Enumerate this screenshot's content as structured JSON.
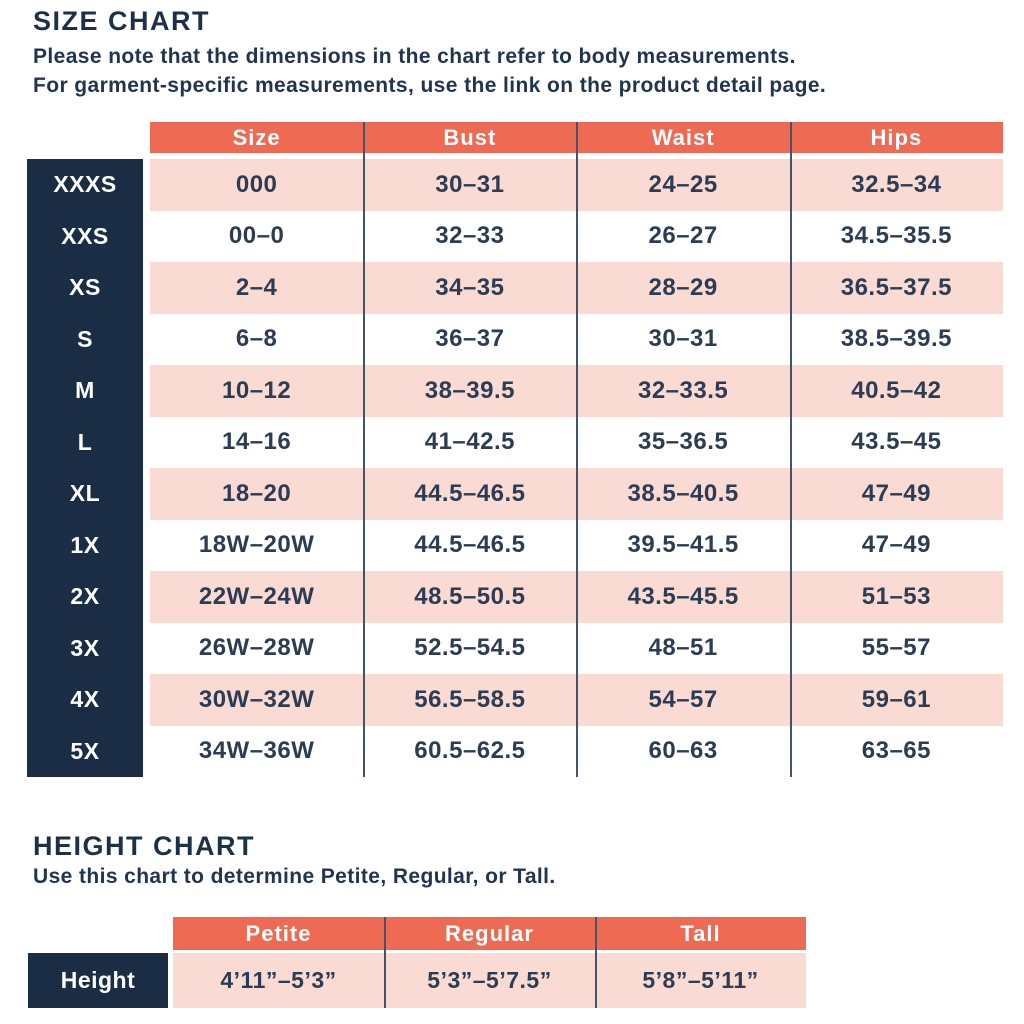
{
  "colors": {
    "coral": "#EE6A52",
    "navy": "#1B2D45",
    "pink": "#F9DBD4",
    "text": "#2C3C54",
    "separator": "#44536A"
  },
  "size_chart": {
    "title": "SIZE CHART",
    "subtitle_line1": "Please note that the dimensions in the chart refer to body measurements.",
    "subtitle_line2": "For garment-specific measurements, use the link on the product detail page.",
    "columns": [
      "Size",
      "Bust",
      "Waist",
      "Hips"
    ],
    "column_keys": [
      "size",
      "bust",
      "waist",
      "hips"
    ],
    "rows": [
      {
        "label": "XXXS",
        "size": "000",
        "bust": "30–31",
        "waist": "24–25",
        "hips": "32.5–34"
      },
      {
        "label": "XXS",
        "size": "00–0",
        "bust": "32–33",
        "waist": "26–27",
        "hips": "34.5–35.5"
      },
      {
        "label": "XS",
        "size": "2–4",
        "bust": "34–35",
        "waist": "28–29",
        "hips": "36.5–37.5"
      },
      {
        "label": "S",
        "size": "6–8",
        "bust": "36–37",
        "waist": "30–31",
        "hips": "38.5–39.5"
      },
      {
        "label": "M",
        "size": "10–12",
        "bust": "38–39.5",
        "waist": "32–33.5",
        "hips": "40.5–42"
      },
      {
        "label": "L",
        "size": "14–16",
        "bust": "41–42.5",
        "waist": "35–36.5",
        "hips": "43.5–45"
      },
      {
        "label": "XL",
        "size": "18–20",
        "bust": "44.5–46.5",
        "waist": "38.5–40.5",
        "hips": "47–49"
      },
      {
        "label": "1X",
        "size": "18W–20W",
        "bust": "44.5–46.5",
        "waist": "39.5–41.5",
        "hips": "47–49"
      },
      {
        "label": "2X",
        "size": "22W–24W",
        "bust": "48.5–50.5",
        "waist": "43.5–45.5",
        "hips": "51–53"
      },
      {
        "label": "3X",
        "size": "26W–28W",
        "bust": "52.5–54.5",
        "waist": "48–51",
        "hips": "55–57"
      },
      {
        "label": "4X",
        "size": "30W–32W",
        "bust": "56.5–58.5",
        "waist": "54–57",
        "hips": "59–61"
      },
      {
        "label": "5X",
        "size": "34W–36W",
        "bust": "60.5–62.5",
        "waist": "60–63",
        "hips": "63–65"
      }
    ]
  },
  "height_chart": {
    "title": "HEIGHT CHART",
    "subtitle": "Use this chart to determine Petite, Regular, or Tall.",
    "columns": [
      "Petite",
      "Regular",
      "Tall"
    ],
    "row_label": "Height",
    "values": [
      "4’11”–5’3”",
      "5’3”–5’7.5”",
      "5’8”–5’11”"
    ]
  }
}
